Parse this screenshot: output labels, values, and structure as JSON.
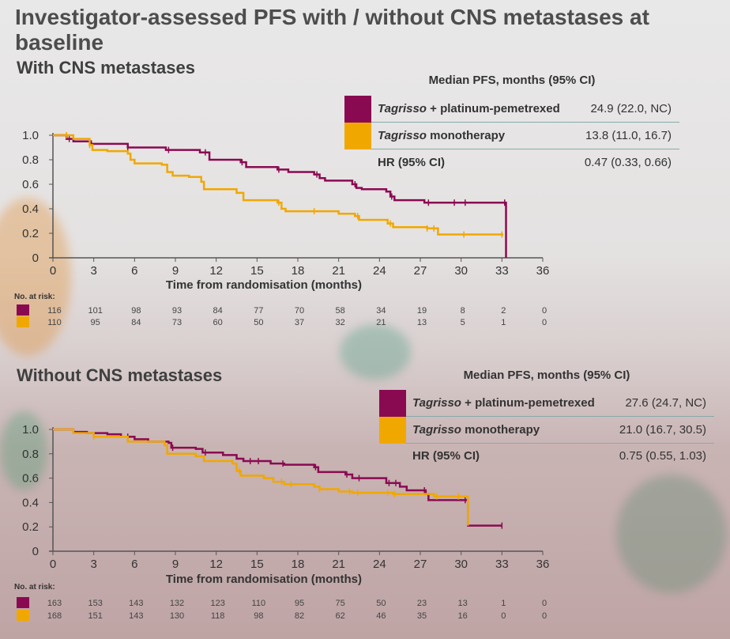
{
  "title": "Investigator-assessed PFS with / without CNS metastases at baseline",
  "colors": {
    "combo": "#8a0a52",
    "mono": "#f0a800"
  },
  "panels": [
    {
      "subtitle": "With CNS metastases",
      "legend": {
        "header": "Median PFS, months (95% CI)",
        "rows": [
          {
            "drug": "Tagrisso",
            "rest": " + platinum-pemetrexed",
            "value": "24.9 (22.0, NC)"
          },
          {
            "drug": "Tagrisso",
            "rest": " monotherapy",
            "value": "13.8 (11.0, 16.7)"
          }
        ],
        "hr_label": "HR (95% CI)",
        "hr_value": "0.47 (0.33, 0.66)"
      },
      "risk_label": "No. at risk:",
      "risk": [
        [
          "116",
          "101",
          "98",
          "93",
          "84",
          "77",
          "70",
          "58",
          "34",
          "19",
          "8",
          "2",
          "0"
        ],
        [
          "110",
          "95",
          "84",
          "73",
          "60",
          "50",
          "37",
          "32",
          "21",
          "13",
          "5",
          "1",
          "0"
        ]
      ]
    },
    {
      "subtitle": "Without CNS metastases",
      "legend": {
        "header": "Median PFS, months (95% CI)",
        "rows": [
          {
            "drug": "Tagrisso",
            "rest": " + platinum-pemetrexed",
            "value": "27.6 (24.7, NC)"
          },
          {
            "drug": "Tagrisso",
            "rest": " monotherapy",
            "value": "21.0 (16.7, 30.5)"
          }
        ],
        "hr_label": "HR (95% CI)",
        "hr_value": "0.75 (0.55, 1.03)"
      },
      "risk_label": "No. at risk:",
      "risk": [
        [
          "163",
          "153",
          "143",
          "132",
          "123",
          "110",
          "95",
          "75",
          "50",
          "23",
          "13",
          "1",
          "0"
        ],
        [
          "168",
          "151",
          "143",
          "130",
          "118",
          "98",
          "82",
          "62",
          "46",
          "35",
          "16",
          "0",
          "0"
        ]
      ]
    }
  ],
  "chart_data": [
    {
      "type": "line",
      "xlabel": "Time from randomisation (months)",
      "ylabel": "",
      "xlim": [
        0,
        36
      ],
      "ylim": [
        0,
        1
      ],
      "xticks": [
        "0",
        "3",
        "6",
        "9",
        "12",
        "15",
        "18",
        "21",
        "24",
        "27",
        "30",
        "33",
        "36"
      ],
      "yticks": [
        "0",
        "0.2",
        "0.4",
        "0.6",
        "0.8",
        "1.0"
      ],
      "series": [
        {
          "name": "Tagrisso + platinum-pemetrexed",
          "points": [
            [
              0,
              1
            ],
            [
              1,
              0.97
            ],
            [
              1.5,
              0.95
            ],
            [
              2.8,
              0.93
            ],
            [
              5.5,
              0.9
            ],
            [
              8.3,
              0.88
            ],
            [
              10.8,
              0.86
            ],
            [
              11.5,
              0.8
            ],
            [
              13.8,
              0.78
            ],
            [
              14.2,
              0.74
            ],
            [
              16.5,
              0.72
            ],
            [
              17.3,
              0.7
            ],
            [
              19.2,
              0.68
            ],
            [
              19.6,
              0.65
            ],
            [
              20,
              0.63
            ],
            [
              22,
              0.6
            ],
            [
              22.3,
              0.57
            ],
            [
              22.7,
              0.56
            ],
            [
              24.5,
              0.54
            ],
            [
              24.8,
              0.5
            ],
            [
              25.1,
              0.47
            ],
            [
              27.3,
              0.45
            ],
            [
              33.3,
              0.45
            ],
            [
              33.3,
              0
            ]
          ],
          "censored": [
            1.2,
            5.5,
            8.5,
            11.2,
            13.9,
            16.6,
            19.4,
            22.2,
            24.9,
            27.6,
            29.5,
            30.3,
            33.2
          ]
        },
        {
          "name": "Tagrisso monotherapy",
          "points": [
            [
              0,
              1
            ],
            [
              1.5,
              0.97
            ],
            [
              2.7,
              0.92
            ],
            [
              2.9,
              0.88
            ],
            [
              4,
              0.87
            ],
            [
              5.5,
              0.85
            ],
            [
              5.7,
              0.8
            ],
            [
              6,
              0.77
            ],
            [
              8,
              0.76
            ],
            [
              8.4,
              0.7
            ],
            [
              8.8,
              0.67
            ],
            [
              10,
              0.66
            ],
            [
              10.9,
              0.62
            ],
            [
              11.1,
              0.56
            ],
            [
              13.5,
              0.53
            ],
            [
              14,
              0.47
            ],
            [
              16.5,
              0.45
            ],
            [
              16.8,
              0.4
            ],
            [
              17.1,
              0.38
            ],
            [
              21,
              0.36
            ],
            [
              22.2,
              0.34
            ],
            [
              22.5,
              0.31
            ],
            [
              24.6,
              0.28
            ],
            [
              25,
              0.25
            ],
            [
              27.5,
              0.24
            ],
            [
              28.3,
              0.19
            ],
            [
              33.1,
              0.19
            ]
          ],
          "censored": [
            1.0,
            2.7,
            16.6,
            19.2,
            22.4,
            24.8,
            27.5,
            28.0,
            30.2,
            33.0
          ]
        }
      ]
    },
    {
      "type": "line",
      "xlabel": "Time from randomisation (months)",
      "ylabel": "",
      "xlim": [
        0,
        36
      ],
      "ylim": [
        0,
        1
      ],
      "xticks": [
        "0",
        "3",
        "6",
        "9",
        "12",
        "15",
        "18",
        "21",
        "24",
        "27",
        "30",
        "33",
        "36"
      ],
      "yticks": [
        "0",
        "0.2",
        "0.4",
        "0.6",
        "0.8",
        "1.0"
      ],
      "series": [
        {
          "name": "Tagrisso + platinum-pemetrexed",
          "points": [
            [
              0,
              1
            ],
            [
              1.5,
              0.98
            ],
            [
              2.5,
              0.97
            ],
            [
              4,
              0.96
            ],
            [
              5,
              0.94
            ],
            [
              6,
              0.92
            ],
            [
              7,
              0.9
            ],
            [
              8.5,
              0.89
            ],
            [
              8.7,
              0.85
            ],
            [
              10.5,
              0.84
            ],
            [
              11,
              0.81
            ],
            [
              12.5,
              0.79
            ],
            [
              13.5,
              0.76
            ],
            [
              14,
              0.74
            ],
            [
              16,
              0.72
            ],
            [
              17,
              0.71
            ],
            [
              19.2,
              0.69
            ],
            [
              19.5,
              0.65
            ],
            [
              21.5,
              0.63
            ],
            [
              22,
              0.6
            ],
            [
              24.5,
              0.56
            ],
            [
              25.5,
              0.53
            ],
            [
              26,
              0.5
            ],
            [
              27.4,
              0.47
            ],
            [
              27.6,
              0.42
            ],
            [
              30.5,
              0.42
            ],
            [
              30.5,
              0.21
            ],
            [
              33,
              0.21
            ]
          ],
          "censored": [
            5.5,
            8.8,
            11.2,
            14.5,
            15.1,
            16.9,
            19.3,
            21.6,
            22.5,
            24.7,
            25.2,
            27.3,
            30.3,
            33
          ]
        },
        {
          "name": "Tagrisso monotherapy",
          "points": [
            [
              0,
              1
            ],
            [
              1.5,
              0.97
            ],
            [
              3,
              0.94
            ],
            [
              5.5,
              0.9
            ],
            [
              8.2,
              0.87
            ],
            [
              8.4,
              0.8
            ],
            [
              10.5,
              0.78
            ],
            [
              11.1,
              0.74
            ],
            [
              13.2,
              0.72
            ],
            [
              13.5,
              0.66
            ],
            [
              13.8,
              0.62
            ],
            [
              15.5,
              0.6
            ],
            [
              16.2,
              0.57
            ],
            [
              17,
              0.55
            ],
            [
              19.2,
              0.53
            ],
            [
              19.6,
              0.51
            ],
            [
              21,
              0.49
            ],
            [
              22,
              0.48
            ],
            [
              25,
              0.47
            ],
            [
              28,
              0.45
            ],
            [
              30.4,
              0.45
            ],
            [
              30.5,
              0.34
            ],
            [
              30.5,
              0.21
            ]
          ],
          "censored": [
            3,
            13.7,
            16.8,
            17.5,
            19.6,
            21.8,
            22.4,
            24.6,
            25.1,
            28.2,
            29.8
          ]
        }
      ]
    }
  ]
}
